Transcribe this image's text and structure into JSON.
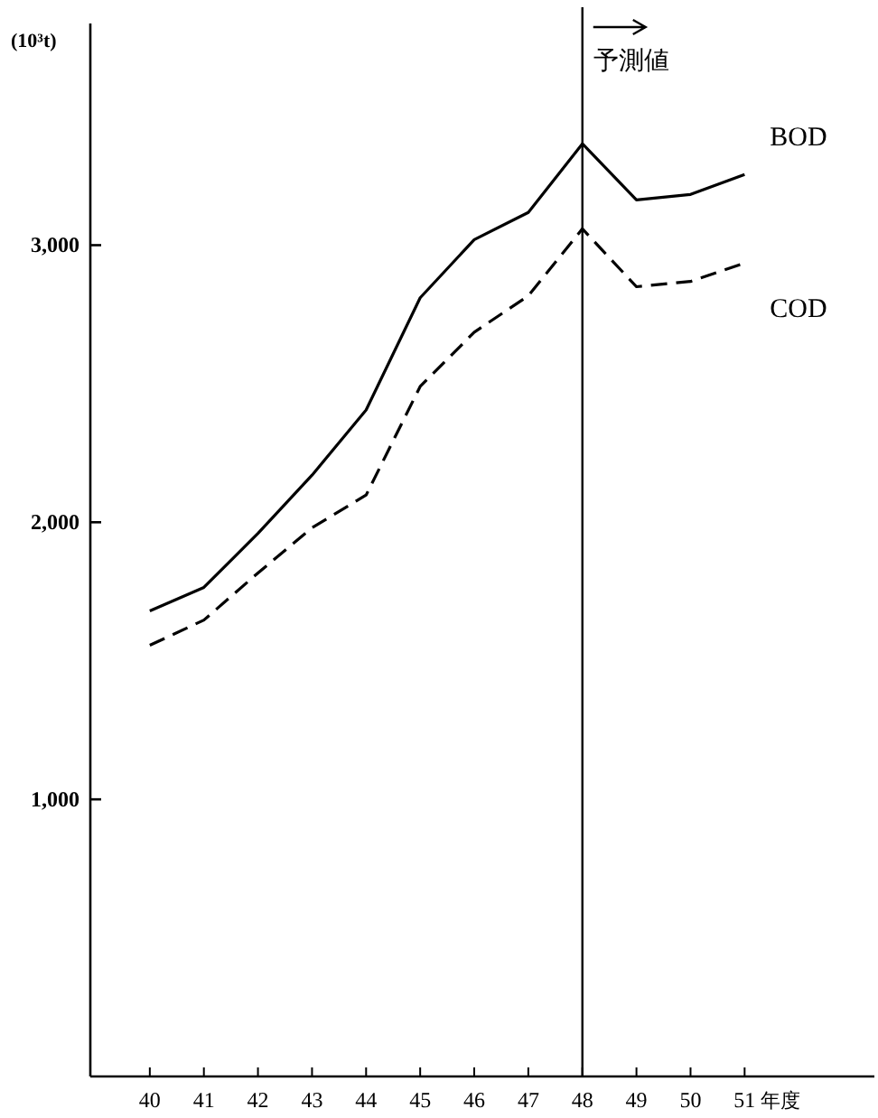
{
  "chart_data": {
    "type": "line",
    "ylabel": "(10³t)",
    "xlabel": "年度",
    "x": [
      40,
      41,
      42,
      43,
      44,
      45,
      46,
      47,
      48,
      49,
      50,
      51
    ],
    "xlim": [
      38.9,
      53.4
    ],
    "xticks": [
      40,
      41,
      42,
      43,
      44,
      45,
      46,
      47,
      48,
      49,
      50,
      51
    ],
    "ylim": [
      0,
      3800
    ],
    "yticks": [
      {
        "value": 1000,
        "label": "1,000"
      },
      {
        "value": 2000,
        "label": "2,000"
      },
      {
        "value": 3000,
        "label": "3,000"
      }
    ],
    "series": [
      {
        "name": "BOD",
        "color": "#000000",
        "line_style": "solid",
        "values": [
          1680,
          1765,
          1960,
          2170,
          2405,
          2810,
          3020,
          3118,
          3366,
          3163,
          3183,
          3255
        ]
      },
      {
        "name": "COD",
        "color": "#000000",
        "line_style": "dashed",
        "values": [
          1556,
          1647,
          1817,
          1980,
          2098,
          2490,
          2686,
          2817,
          3059,
          2850,
          2869,
          2935
        ]
      }
    ],
    "ref_lines": [
      {
        "axis": "x",
        "value": 48,
        "label": "予測値",
        "color": "#000000"
      }
    ],
    "grid": false,
    "legend": false,
    "marker": "none"
  }
}
